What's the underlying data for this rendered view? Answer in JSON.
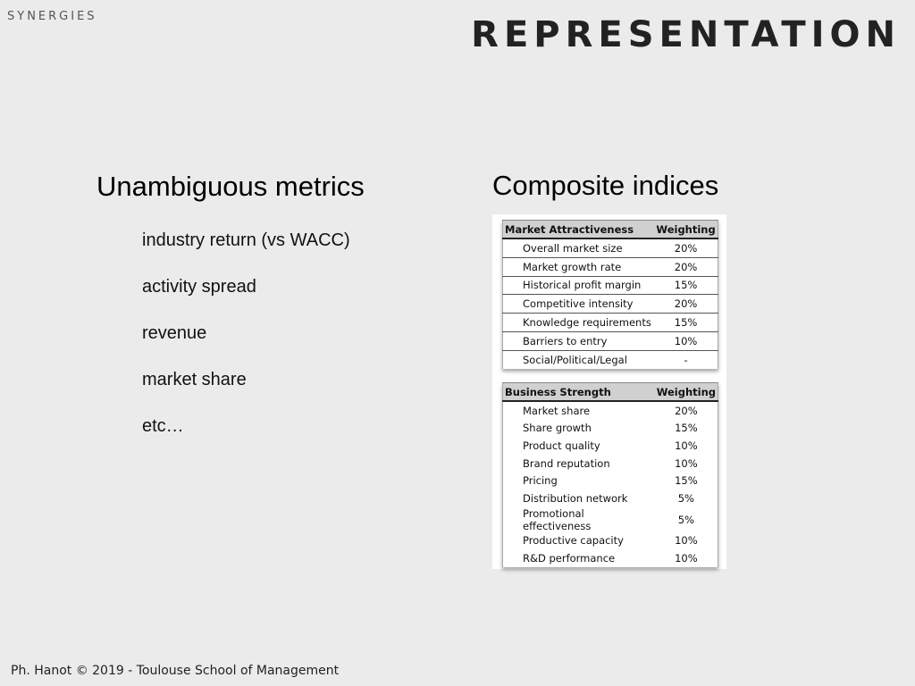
{
  "header": {
    "section": "SYNERGIES",
    "title": "REPRESENTATION"
  },
  "left": {
    "heading": "Unambiguous metrics",
    "items": [
      "industry return (vs WACC)",
      "activity spread",
      "revenue",
      "market share",
      "etc…"
    ]
  },
  "right": {
    "heading": "Composite indices",
    "market_table": {
      "col_label": "Market Attractiveness",
      "col_weight": "Weighting",
      "rows": [
        {
          "label": "Overall market size",
          "weight": "20%"
        },
        {
          "label": "Market growth rate",
          "weight": "20%"
        },
        {
          "label": "Historical profit margin",
          "weight": "15%"
        },
        {
          "label": "Competitive intensity",
          "weight": "20%"
        },
        {
          "label": "Knowledge requirements",
          "weight": "15%"
        },
        {
          "label": "Barriers to entry",
          "weight": "10%"
        },
        {
          "label": "Social/Political/Legal",
          "weight": "-"
        }
      ]
    },
    "business_table": {
      "col_label": "Business Strength",
      "col_weight": "Weighting",
      "rows": [
        {
          "label": "Market share",
          "weight": "20%"
        },
        {
          "label": "Share growth",
          "weight": "15%"
        },
        {
          "label": "Product quality",
          "weight": "10%"
        },
        {
          "label": "Brand reputation",
          "weight": "10%"
        },
        {
          "label": "Pricing",
          "weight": "15%"
        },
        {
          "label": "Distribution network",
          "weight": "5%"
        },
        {
          "label": "Promotional effectiveness",
          "weight": "5%"
        },
        {
          "label": "Productive capacity",
          "weight": "10%"
        },
        {
          "label": "R&D performance",
          "weight": "10%"
        }
      ]
    }
  },
  "footer": "Ph. Hanot © 2019  -  Toulouse School of Management"
}
